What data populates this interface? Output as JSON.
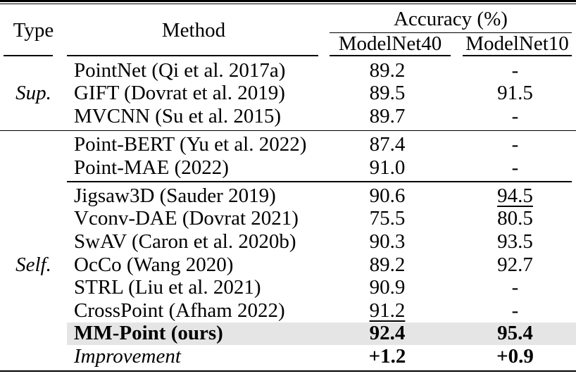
{
  "table": {
    "header": {
      "type": "Type",
      "method": "Method",
      "accuracy_group": "Accuracy (%)",
      "col_modelnet40": "ModelNet40",
      "col_modelnet10": "ModelNet10"
    },
    "groups": {
      "supervised_label": "Sup.",
      "self_supervised_label": "Self."
    },
    "rows": [
      {
        "type_label": "",
        "method": "PointNet (Qi et al. 2017a)",
        "mn40": "89.2",
        "mn10": "-"
      },
      {
        "type_label": "Sup.",
        "method": "GIFT (Dovrat et al. 2019)",
        "mn40": "89.5",
        "mn10": "91.5"
      },
      {
        "type_label": "",
        "method": "MVCNN (Su et al. 2015)",
        "mn40": "89.7",
        "mn10": "-"
      },
      {
        "type_label": "",
        "method": "Point-BERT (Yu et al. 2022)",
        "mn40": "87.4",
        "mn10": "-",
        "separator_before": "full"
      },
      {
        "type_label": "",
        "method": "Point-MAE (2022)",
        "mn40": "91.0",
        "mn10": "-"
      },
      {
        "type_label": "",
        "method": "Jigsaw3D (Sauder 2019)",
        "mn40": "90.6",
        "mn10": "94.5",
        "mn10_underline": true,
        "separator_before": "partial"
      },
      {
        "type_label": "",
        "method": "Vconv-DAE (Dovrat 2021)",
        "mn40": "75.5",
        "mn10": "80.5"
      },
      {
        "type_label": "",
        "method": "SwAV (Caron et al. 2020b)",
        "mn40": "90.3",
        "mn10": "93.5"
      },
      {
        "type_label": "Self.",
        "method": "OcCo (Wang 2020)",
        "mn40": "89.2",
        "mn10": "92.7"
      },
      {
        "type_label": "",
        "method": "STRL (Liu et al. 2021)",
        "mn40": "90.9",
        "mn10": "-"
      },
      {
        "type_label": "",
        "method": "CrossPoint (Afham 2022)",
        "mn40": "91.2",
        "mn10": "-",
        "mn40_underline": true
      },
      {
        "type_label": "",
        "method": "MM-Point (ours)",
        "mn40": "92.4",
        "mn10": "95.4",
        "highlight": true,
        "bold": true
      },
      {
        "type_label": "",
        "method": "Improvement",
        "mn40": "+1.2",
        "mn10": "+0.9",
        "method_italic": true,
        "values_bold": true
      }
    ],
    "colors": {
      "highlight_row": "#e5e5e5",
      "text": "#000000",
      "rules": "#000000",
      "background": "#ffffff"
    }
  }
}
